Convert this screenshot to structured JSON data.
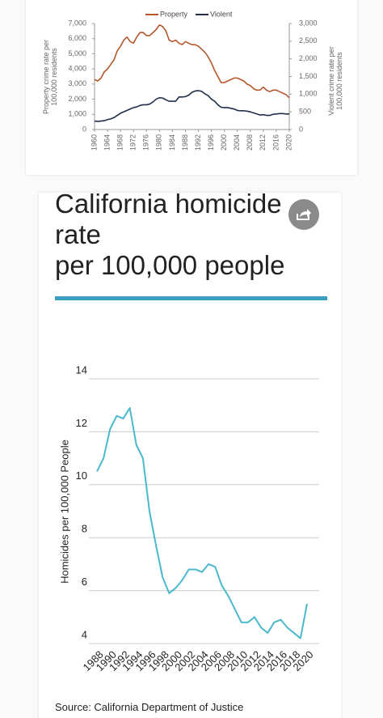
{
  "chart_data": [
    {
      "type": "line",
      "x": [
        1960,
        1961,
        1962,
        1963,
        1964,
        1965,
        1966,
        1967,
        1968,
        1969,
        1970,
        1971,
        1972,
        1973,
        1974,
        1975,
        1976,
        1977,
        1978,
        1979,
        1980,
        1981,
        1982,
        1983,
        1984,
        1985,
        1986,
        1987,
        1988,
        1989,
        1990,
        1991,
        1992,
        1993,
        1994,
        1995,
        1996,
        1997,
        1998,
        1999,
        2000,
        2001,
        2002,
        2003,
        2004,
        2005,
        2006,
        2007,
        2008,
        2009,
        2010,
        2011,
        2012,
        2013,
        2014,
        2015,
        2016,
        2017,
        2018,
        2019,
        2020
      ],
      "xlim": [
        1960,
        2020
      ],
      "xticks": [
        1960,
        1964,
        1968,
        1972,
        1976,
        1980,
        1984,
        1988,
        1992,
        1996,
        2000,
        2004,
        2008,
        2012,
        2016,
        2020
      ],
      "ylabel": "Property crime rate per 100,000 residents",
      "y2label": "Violent crime rate per 100,000 residents",
      "ylim": [
        0,
        7000
      ],
      "yticks": [
        0,
        {
          "value": 1000,
          "label": "1,000"
        },
        {
          "value": 2000,
          "label": "2,000"
        },
        {
          "value": 3000,
          "label": "3,000"
        },
        {
          "value": 4000,
          "label": "4,000"
        },
        {
          "value": 5000,
          "label": "5,000"
        },
        {
          "value": 6000,
          "label": "6,000"
        },
        {
          "value": 7000,
          "label": "7,000"
        }
      ],
      "y2lim": [
        0,
        3000
      ],
      "y2ticks": [
        0,
        500,
        {
          "value": 1000,
          "label": "1,000"
        },
        {
          "value": 1500,
          "label": "1,500"
        },
        {
          "value": 2000,
          "label": "2,000"
        },
        {
          "value": 2500,
          "label": "2,500"
        },
        {
          "value": 3000,
          "label": "3,000"
        }
      ],
      "legend": "top",
      "series": [
        {
          "name": "Property",
          "color": "#b5562b",
          "values": [
            3300,
            3200,
            3400,
            3800,
            4000,
            4300,
            4600,
            5200,
            5500,
            5900,
            6100,
            5800,
            5700,
            6100,
            6400,
            6400,
            6200,
            6200,
            6400,
            6600,
            6900,
            6800,
            6500,
            5900,
            5800,
            5900,
            5700,
            5600,
            5800,
            5700,
            5600,
            5600,
            5500,
            5300,
            5100,
            4800,
            4400,
            3900,
            3500,
            3100,
            3100,
            3200,
            3300,
            3400,
            3400,
            3300,
            3200,
            3000,
            2900,
            2700,
            2600,
            2600,
            2800,
            2600,
            2500,
            2600,
            2600,
            2500,
            2400,
            2300,
            2100
          ]
        },
        {
          "name": "Violent",
          "color": "#1f2f4a",
          "axis": "y2",
          "values": [
            240,
            230,
            240,
            250,
            280,
            300,
            340,
            400,
            460,
            500,
            540,
            580,
            620,
            640,
            680,
            700,
            700,
            720,
            780,
            860,
            900,
            890,
            840,
            800,
            800,
            800,
            920,
            920,
            930,
            970,
            1050,
            1090,
            1100,
            1080,
            1010,
            960,
            860,
            800,
            700,
            630,
            620,
            620,
            600,
            580,
            540,
            530,
            530,
            520,
            500,
            470,
            440,
            410,
            420,
            400,
            400,
            430,
            440,
            450,
            450,
            440,
            440
          ]
        }
      ]
    },
    {
      "type": "line",
      "title": [
        "California homicide",
        "rate",
        "per 100,000 people"
      ],
      "ylabel": "Homicides per 100,000 People",
      "source": "Source: California Department of Justice",
      "x": [
        1988,
        1989,
        1990,
        1991,
        1992,
        1993,
        1994,
        1995,
        1996,
        1997,
        1998,
        1999,
        2000,
        2001,
        2002,
        2003,
        2004,
        2005,
        2006,
        2007,
        2008,
        2009,
        2010,
        2011,
        2012,
        2013,
        2014,
        2015,
        2016,
        2017,
        2018,
        2019,
        2020
      ],
      "xlim": [
        1988,
        2020
      ],
      "xticks": [
        1988,
        1990,
        1992,
        1994,
        1996,
        1998,
        2000,
        2002,
        2004,
        2006,
        2008,
        2010,
        2012,
        2014,
        2016,
        2018,
        2020
      ],
      "ylim": [
        4,
        14
      ],
      "yticks": [
        4,
        6,
        8,
        10,
        12,
        14
      ],
      "grid": true,
      "series": [
        {
          "color": "#4bb8cc",
          "values": [
            10.5,
            11,
            12.1,
            12.6,
            12.5,
            12.9,
            11.5,
            11,
            9,
            7.7,
            6.5,
            5.9,
            6.1,
            6.4,
            6.8,
            6.8,
            6.7,
            7,
            6.9,
            6.2,
            5.8,
            5.3,
            4.8,
            4.8,
            5,
            4.6,
            4.4,
            4.8,
            4.9,
            4.6,
            4.4,
            4.2,
            5.5
          ]
        }
      ]
    }
  ]
}
